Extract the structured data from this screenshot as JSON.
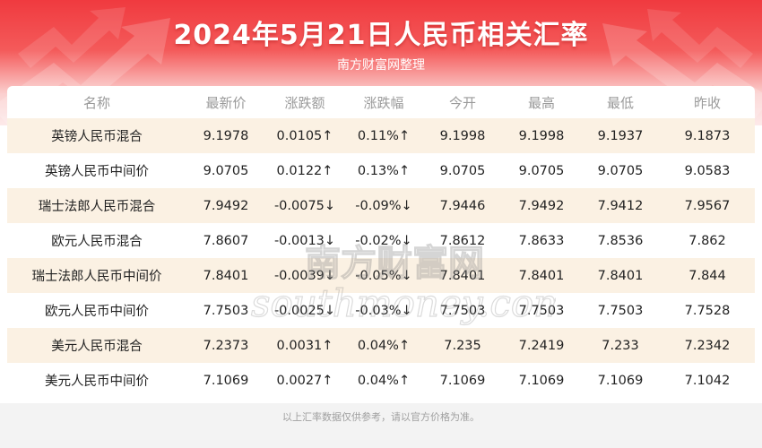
{
  "header": {
    "title": "2024年5月21日人民币相关汇率",
    "subtitle": "南方财富网整理"
  },
  "table": {
    "columns": [
      "名称",
      "最新价",
      "涨跌额",
      "涨跌幅",
      "今开",
      "最高",
      "最低",
      "昨收"
    ],
    "rows": [
      {
        "name": "英镑人民币混合",
        "latest": "9.1978",
        "change": "0.0105↑",
        "change_pct": "0.11%↑",
        "open": "9.1998",
        "high": "9.1998",
        "low": "9.1937",
        "prev_close": "9.1873",
        "direction": "up"
      },
      {
        "name": "英镑人民币中间价",
        "latest": "9.0705",
        "change": "0.0122↑",
        "change_pct": "0.13%↑",
        "open": "9.0705",
        "high": "9.0705",
        "low": "9.0705",
        "prev_close": "9.0583",
        "direction": "up"
      },
      {
        "name": "瑞士法郎人民币混合",
        "latest": "7.9492",
        "change": "-0.0075↓",
        "change_pct": "-0.09%↓",
        "open": "7.9446",
        "high": "7.9492",
        "low": "7.9412",
        "prev_close": "7.9567",
        "direction": "down"
      },
      {
        "name": "欧元人民币混合",
        "latest": "7.8607",
        "change": "-0.0013↓",
        "change_pct": "-0.02%↓",
        "open": "7.8612",
        "high": "7.8633",
        "low": "7.8536",
        "prev_close": "7.862",
        "direction": "down"
      },
      {
        "name": "瑞士法郎人民币中间价",
        "latest": "7.8401",
        "change": "-0.0039↓",
        "change_pct": "-0.05%↓",
        "open": "7.8401",
        "high": "7.8401",
        "low": "7.8401",
        "prev_close": "7.844",
        "direction": "down"
      },
      {
        "name": "欧元人民币中间价",
        "latest": "7.7503",
        "change": "-0.0025↓",
        "change_pct": "-0.03%↓",
        "open": "7.7503",
        "high": "7.7503",
        "low": "7.7503",
        "prev_close": "7.7528",
        "direction": "down"
      },
      {
        "name": "美元人民币混合",
        "latest": "7.2373",
        "change": "0.0031↑",
        "change_pct": "0.04%↑",
        "open": "7.235",
        "high": "7.2419",
        "low": "7.233",
        "prev_close": "7.2342",
        "direction": "up"
      },
      {
        "name": "美元人民币中间价",
        "latest": "7.1069",
        "change": "0.0027↑",
        "change_pct": "0.04%↑",
        "open": "7.1069",
        "high": "7.1069",
        "low": "7.1069",
        "prev_close": "7.1042",
        "direction": "up"
      }
    ]
  },
  "watermark": {
    "cn": "南方财富网",
    "en": "southmoney.com"
  },
  "footer": {
    "note": "以上汇率数据仅供参考，请以官方价格为准。"
  },
  "colors": {
    "up": "#e21b1b",
    "down": "#2b8a1e",
    "banner": "#f03a3f",
    "stripe": "#fbf1e3"
  },
  "icons": [
    "trend-up-arrow-icon",
    "trend-down-arrow-icon"
  ]
}
